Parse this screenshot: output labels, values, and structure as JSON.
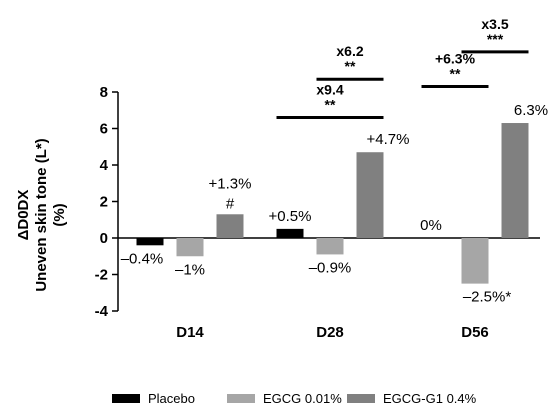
{
  "chart_data": {
    "type": "bar",
    "ylabel": "ΔD0DX\nUneven skin tone (L*)\n(%)",
    "ylim": [
      -4,
      8
    ],
    "yticks": [
      -4,
      -2,
      0,
      2,
      4,
      6,
      8
    ],
    "categories": [
      "D14",
      "D28",
      "D56"
    ],
    "series": [
      {
        "name": "Placebo",
        "color": "#000000",
        "values": [
          -0.4,
          0.5,
          0.0
        ],
        "labels": [
          "–0.4%",
          "+0.5%",
          "0%"
        ]
      },
      {
        "name": "EGCG 0.01%",
        "color": "#a6a6a6",
        "values": [
          -1.0,
          -0.9,
          -2.5
        ],
        "labels": [
          "–1%",
          "–0.9%",
          "–2.5%*"
        ]
      },
      {
        "name": "EGCG-G1 0.4%",
        "color": "#808080",
        "values": [
          1.3,
          4.7,
          6.3
        ],
        "labels": [
          "+1.3%\n#",
          "+4.7%",
          "6.3%"
        ]
      }
    ],
    "comparisons": [
      {
        "category": 1,
        "from": 0,
        "to": 2,
        "label": "x9.4",
        "stars": "**",
        "y": 6.6
      },
      {
        "category": 1,
        "from": 1,
        "to": 2,
        "label": "x6.2",
        "stars": "**",
        "y": 8.7
      },
      {
        "category": 2,
        "from": 0,
        "to": 1,
        "label": "+6.3%",
        "stars": "**",
        "y": 8.3
      },
      {
        "category": 2,
        "from": 1,
        "to": 2,
        "label": "x3.5",
        "stars": "***",
        "y": 10.2
      }
    ],
    "legend_position": "bottom"
  }
}
